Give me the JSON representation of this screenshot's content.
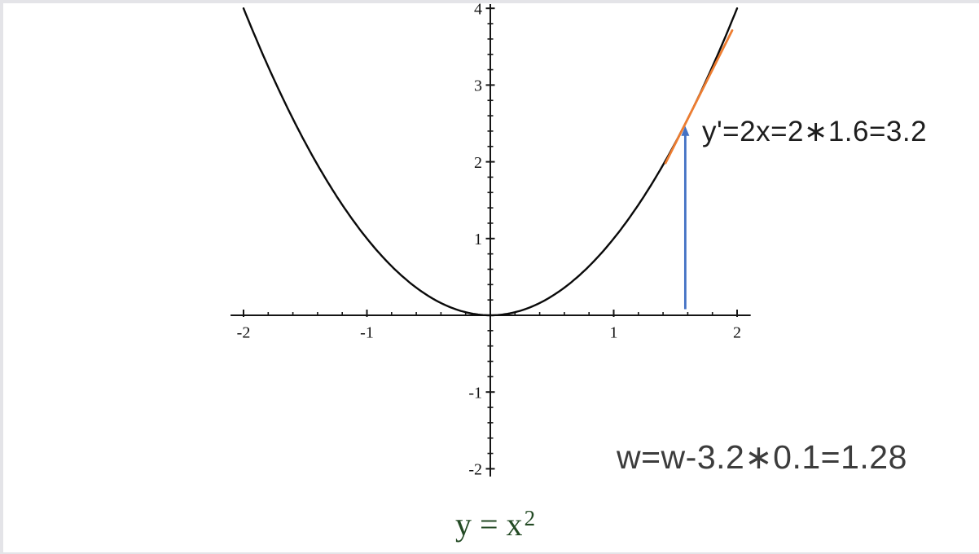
{
  "page": {
    "background_color": "#ffffff",
    "border_color": "#e4e4e8"
  },
  "chart_data": {
    "type": "line",
    "title": "",
    "xlabel": "",
    "ylabel": "",
    "grid": false,
    "x_range": [
      -2.105,
      2.11
    ],
    "y_range": [
      -2.1,
      4.055
    ],
    "x_major_ticks": [
      -2,
      -1,
      1,
      2
    ],
    "x_tick_labels": [
      "-2",
      "-1",
      "1",
      "2"
    ],
    "y_major_ticks": [
      -2,
      -1,
      1,
      2,
      3,
      4
    ],
    "y_tick_labels": [
      "-2",
      "-1",
      "1",
      "2",
      "3",
      "4"
    ],
    "minor_tick_step": 0.2,
    "series": [
      {
        "name": "parabola",
        "equation": "y = x^2",
        "x_from": -2,
        "x_to": 2,
        "color": "#0a0a0a",
        "sample_points": {
          "x": [
            -2,
            -1.5,
            -1,
            -0.5,
            0,
            0.5,
            1,
            1.5,
            2
          ],
          "y": [
            4,
            2.25,
            1,
            0.25,
            0,
            0.25,
            1,
            2.25,
            4
          ]
        }
      },
      {
        "name": "tangent-line",
        "tangent_point_x": 1.6,
        "tangent_point_y": 2.56,
        "slope": 3.2,
        "x_from": 1.42,
        "x_to": 1.96,
        "color": "#ED7D31"
      }
    ],
    "annotations": {
      "arrow": {
        "x": 1.58,
        "y_from": 0.08,
        "y_to": 2.36,
        "color": "#4472C4"
      },
      "derivative_label": "y'=2x=2*1.6=3.2",
      "weight_update_label": "w=w-3.2*0.1=1.28",
      "equation_label_base": "y = x",
      "equation_label_sup": "2",
      "equation_color": "#234a24"
    }
  }
}
